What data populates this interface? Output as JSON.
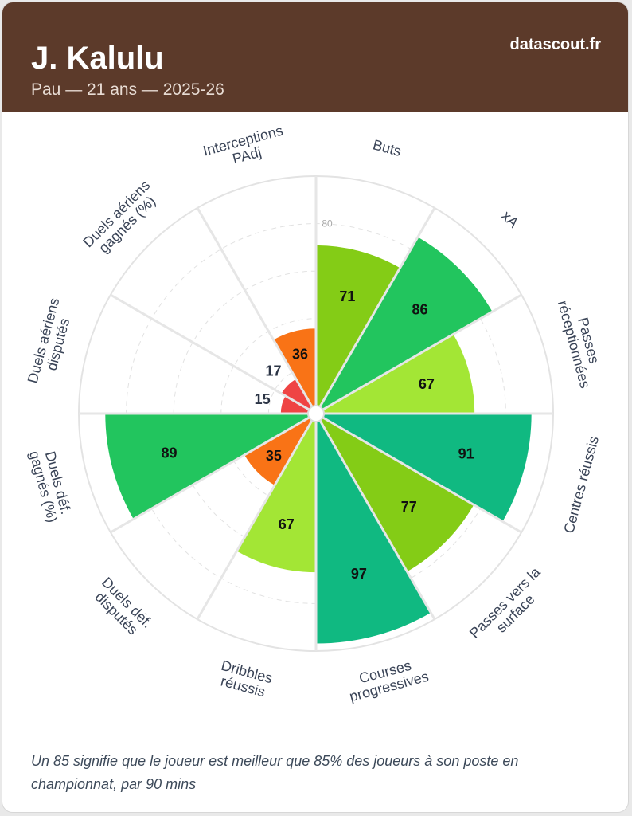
{
  "header": {
    "player_name": "J. Kalulu",
    "subtitle": "Pau — 21 ans — 2025-26",
    "brand": "datascout.fr",
    "background_color": "#5c3a2a"
  },
  "footnote": "Un 85 signifie que le joueur est meilleur que 85% des joueurs à son poste en championnat, par 90 mins",
  "chart_data": {
    "type": "radar-bar",
    "title": "",
    "scale": [
      0,
      100
    ],
    "tick_labels": [
      "80"
    ],
    "categories": [
      {
        "label": [
          "Buts"
        ],
        "value": 71,
        "color": "#84cc16"
      },
      {
        "label": [
          "xA"
        ],
        "value": 86,
        "color": "#22c55e"
      },
      {
        "label": [
          "Passes",
          "réceptionnées"
        ],
        "value": 67,
        "color": "#a3e635"
      },
      {
        "label": [
          "Centres réussis"
        ],
        "value": 91,
        "color": "#10b981"
      },
      {
        "label": [
          "Passes vers la",
          "surface"
        ],
        "value": 77,
        "color": "#84cc16"
      },
      {
        "label": [
          "Courses",
          "progressives"
        ],
        "value": 97,
        "color": "#10b981"
      },
      {
        "label": [
          "Dribbles",
          "réussis"
        ],
        "value": 67,
        "color": "#a3e635"
      },
      {
        "label": [
          "Duels déf.",
          "disputés"
        ],
        "value": 35,
        "color": "#f97316"
      },
      {
        "label": [
          "Duels déf.",
          "gagnés (%)"
        ],
        "value": 89,
        "color": "#22c55e"
      },
      {
        "label": [
          "Duels aériens",
          "disputés"
        ],
        "value": 15,
        "color": "#ef4444"
      },
      {
        "label": [
          "Duels aériens",
          "gagnés (%)"
        ],
        "value": 17,
        "color": "#ef4444"
      },
      {
        "label": [
          "Interceptions",
          "PAdj"
        ],
        "value": 36,
        "color": "#f97316"
      }
    ]
  }
}
